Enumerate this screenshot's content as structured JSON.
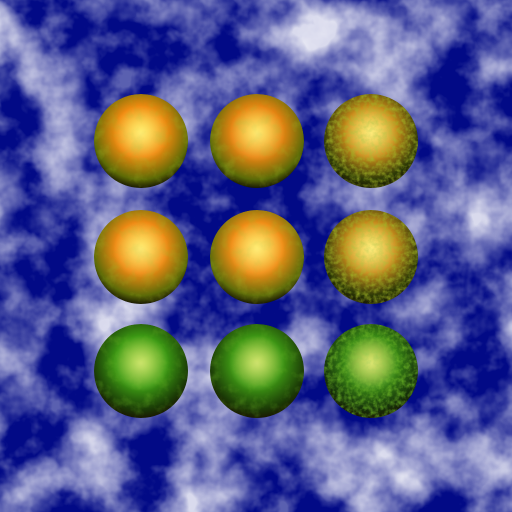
{
  "scene": {
    "background": {
      "sky_color": "#020a86",
      "cloud_color": "#ffffff"
    },
    "spheres": [
      {
        "row": 1,
        "col": 1,
        "material": "orange-smooth",
        "base": "#f08a10",
        "spot": "#ffe23a",
        "edge": "#5d6a06"
      },
      {
        "row": 1,
        "col": 2,
        "material": "orange-smooth",
        "base": "#e88412",
        "spot": "#ffd834",
        "edge": "#5a6a08"
      },
      {
        "row": 1,
        "col": 3,
        "material": "orange-rough",
        "base": "#c98a1a",
        "spot": "#ffe04a",
        "edge": "#2e3a06"
      },
      {
        "row": 2,
        "col": 1,
        "material": "orange-smooth",
        "base": "#ef8a14",
        "spot": "#ffdc3a",
        "edge": "#5c6a08"
      },
      {
        "row": 2,
        "col": 2,
        "material": "orange-smooth",
        "base": "#f08d16",
        "spot": "#ffe040",
        "edge": "#5e6c0a"
      },
      {
        "row": 2,
        "col": 3,
        "material": "orange-rough",
        "base": "#c78a1c",
        "spot": "#ffe24c",
        "edge": "#2c3806"
      },
      {
        "row": 3,
        "col": 1,
        "material": "green-smooth",
        "base": "#3c9a14",
        "spot": "#8fd02a",
        "edge": "#1a3a06"
      },
      {
        "row": 3,
        "col": 2,
        "material": "green-smooth",
        "base": "#3d9614",
        "spot": "#9ad030",
        "edge": "#1b3a06"
      },
      {
        "row": 3,
        "col": 3,
        "material": "green-rough",
        "base": "#3a8a16",
        "spot": "#b8d43a",
        "edge": "#15300a"
      }
    ]
  }
}
